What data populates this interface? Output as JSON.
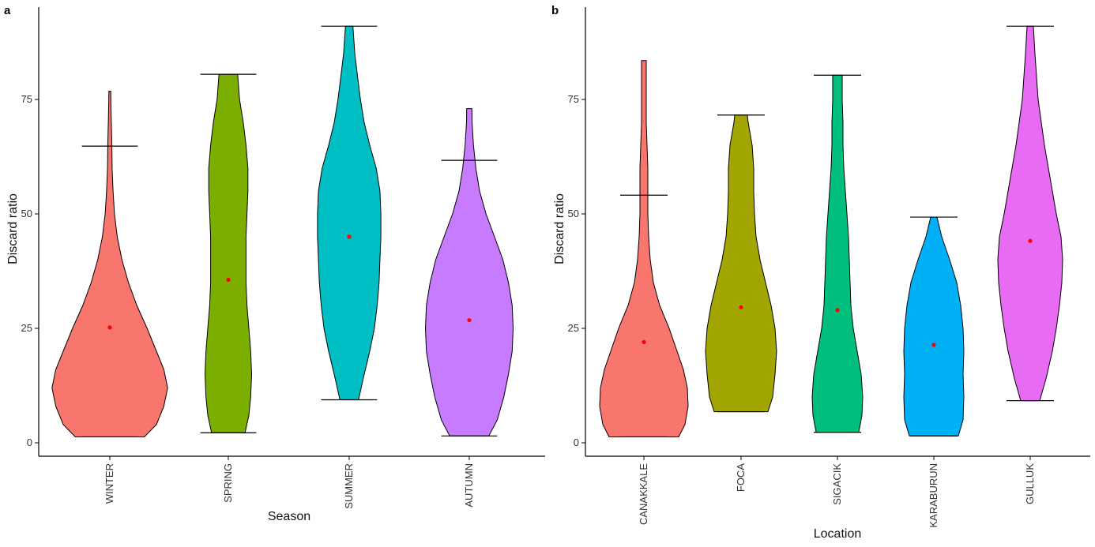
{
  "chart_data": [
    {
      "panel_label": "a",
      "type": "violin",
      "xlabel": "Season",
      "ylabel": "Discard ratio",
      "ylim": [
        0,
        93
      ],
      "yticks": [
        0,
        25,
        50,
        75
      ],
      "categories": [
        "WINTER",
        "SPRING",
        "SUMMER",
        "AUTUMN"
      ],
      "colors": [
        "#F8766D",
        "#7CAE00",
        "#00BFC4",
        "#C77CFF"
      ],
      "groups": [
        {
          "name": "WINTER",
          "min": 1.3,
          "max": 76.8,
          "upper_whisker": 64.8,
          "mean": 25.2,
          "density": [
            [
              1.3,
              0.37
            ],
            [
              4,
              0.5
            ],
            [
              8,
              0.58
            ],
            [
              12,
              0.62
            ],
            [
              16,
              0.58
            ],
            [
              20,
              0.5
            ],
            [
              25,
              0.4
            ],
            [
              30,
              0.29
            ],
            [
              35,
              0.2
            ],
            [
              40,
              0.13
            ],
            [
              45,
              0.08
            ],
            [
              50,
              0.05
            ],
            [
              55,
              0.035
            ],
            [
              60,
              0.025
            ],
            [
              65,
              0.022
            ],
            [
              70,
              0.016
            ],
            [
              74,
              0.012
            ],
            [
              76.8,
              0.01
            ]
          ]
        },
        {
          "name": "SPRING",
          "min": 2.2,
          "max": 80.5,
          "upper_whisker": 80.5,
          "mean": 35.6,
          "density": [
            [
              2.2,
              0.18
            ],
            [
              6,
              0.22
            ],
            [
              10,
              0.24
            ],
            [
              15,
              0.25
            ],
            [
              20,
              0.24
            ],
            [
              25,
              0.22
            ],
            [
              30,
              0.2
            ],
            [
              35,
              0.19
            ],
            [
              40,
              0.19
            ],
            [
              45,
              0.19
            ],
            [
              50,
              0.2
            ],
            [
              55,
              0.21
            ],
            [
              60,
              0.21
            ],
            [
              65,
              0.19
            ],
            [
              70,
              0.16
            ],
            [
              75,
              0.12
            ],
            [
              80.5,
              0.1
            ]
          ]
        },
        {
          "name": "SUMMER",
          "min": 9.4,
          "max": 91.0,
          "upper_whisker": 91.0,
          "mean": 45.0,
          "density": [
            [
              9.4,
              0.1
            ],
            [
              14,
              0.15
            ],
            [
              20,
              0.22
            ],
            [
              25,
              0.27
            ],
            [
              30,
              0.3
            ],
            [
              35,
              0.32
            ],
            [
              40,
              0.33
            ],
            [
              45,
              0.34
            ],
            [
              50,
              0.34
            ],
            [
              55,
              0.33
            ],
            [
              60,
              0.29
            ],
            [
              65,
              0.22
            ],
            [
              70,
              0.16
            ],
            [
              75,
              0.12
            ],
            [
              80,
              0.09
            ],
            [
              85,
              0.06
            ],
            [
              91,
              0.04
            ]
          ]
        },
        {
          "name": "AUTUMN",
          "min": 1.5,
          "max": 73.0,
          "upper_whisker": 61.7,
          "mean": 26.8,
          "density": [
            [
              1.5,
              0.21
            ],
            [
              5,
              0.3
            ],
            [
              10,
              0.37
            ],
            [
              15,
              0.42
            ],
            [
              20,
              0.46
            ],
            [
              25,
              0.47
            ],
            [
              30,
              0.46
            ],
            [
              35,
              0.42
            ],
            [
              40,
              0.36
            ],
            [
              45,
              0.27
            ],
            [
              50,
              0.18
            ],
            [
              55,
              0.11
            ],
            [
              60,
              0.07
            ],
            [
              65,
              0.045
            ],
            [
              70,
              0.03
            ],
            [
              73,
              0.028
            ]
          ]
        }
      ]
    },
    {
      "panel_label": "b",
      "type": "violin",
      "xlabel": "Location",
      "ylabel": "Discard ratio",
      "ylim": [
        0,
        93
      ],
      "yticks": [
        0,
        25,
        50,
        75
      ],
      "categories": [
        "CANAKKALE",
        "FOCA",
        "SIGACIK",
        "KARABURUN",
        "GULLUK"
      ],
      "colors": [
        "#F8766D",
        "#A3A500",
        "#00BF7D",
        "#00B0F6",
        "#E76BF3"
      ],
      "groups": [
        {
          "name": "CANAKKALE",
          "min": 1.3,
          "max": 83.5,
          "upper_whisker": 54.1,
          "mean": 22.0,
          "density": [
            [
              1.3,
              0.44
            ],
            [
              4,
              0.52
            ],
            [
              8,
              0.56
            ],
            [
              12,
              0.55
            ],
            [
              16,
              0.5
            ],
            [
              20,
              0.42
            ],
            [
              25,
              0.32
            ],
            [
              30,
              0.2
            ],
            [
              35,
              0.12
            ],
            [
              40,
              0.08
            ],
            [
              45,
              0.06
            ],
            [
              50,
              0.05
            ],
            [
              55,
              0.05
            ],
            [
              60,
              0.05
            ],
            [
              65,
              0.04
            ],
            [
              70,
              0.03
            ],
            [
              75,
              0.03
            ],
            [
              83.5,
              0.03
            ]
          ]
        },
        {
          "name": "FOCA",
          "min": 6.8,
          "max": 71.6,
          "upper_whisker": 71.6,
          "mean": 29.6,
          "density": [
            [
              6.8,
              0.34
            ],
            [
              10,
              0.4
            ],
            [
              15,
              0.43
            ],
            [
              20,
              0.45
            ],
            [
              25,
              0.43
            ],
            [
              30,
              0.38
            ],
            [
              35,
              0.31
            ],
            [
              40,
              0.24
            ],
            [
              45,
              0.19
            ],
            [
              50,
              0.17
            ],
            [
              55,
              0.16
            ],
            [
              60,
              0.16
            ],
            [
              65,
              0.14
            ],
            [
              70,
              0.09
            ],
            [
              71.6,
              0.08
            ]
          ]
        },
        {
          "name": "SIGACIK",
          "min": 2.3,
          "max": 80.3,
          "upper_whisker": 80.3,
          "mean": 29.0,
          "density": [
            [
              2.3,
              0.27
            ],
            [
              6,
              0.31
            ],
            [
              10,
              0.32
            ],
            [
              15,
              0.3
            ],
            [
              20,
              0.25
            ],
            [
              25,
              0.2
            ],
            [
              30,
              0.17
            ],
            [
              35,
              0.16
            ],
            [
              40,
              0.15
            ],
            [
              45,
              0.14
            ],
            [
              50,
              0.12
            ],
            [
              55,
              0.1
            ],
            [
              60,
              0.08
            ],
            [
              65,
              0.07
            ],
            [
              70,
              0.07
            ],
            [
              75,
              0.06
            ],
            [
              80.3,
              0.06
            ]
          ]
        },
        {
          "name": "KARABURUN",
          "min": 1.5,
          "max": 49.3,
          "upper_whisker": 49.3,
          "mean": 21.4,
          "density": [
            [
              1.5,
              0.31
            ],
            [
              5,
              0.37
            ],
            [
              10,
              0.38
            ],
            [
              15,
              0.37
            ],
            [
              20,
              0.38
            ],
            [
              25,
              0.37
            ],
            [
              30,
              0.34
            ],
            [
              35,
              0.29
            ],
            [
              40,
              0.2
            ],
            [
              45,
              0.1
            ],
            [
              49.3,
              0.04
            ]
          ]
        },
        {
          "name": "GULLUK",
          "min": 9.2,
          "max": 91.0,
          "upper_whisker": 91.0,
          "mean": 44.1,
          "density": [
            [
              9.2,
              0.12
            ],
            [
              14,
              0.2
            ],
            [
              20,
              0.28
            ],
            [
              25,
              0.33
            ],
            [
              30,
              0.37
            ],
            [
              35,
              0.4
            ],
            [
              40,
              0.41
            ],
            [
              45,
              0.39
            ],
            [
              50,
              0.33
            ],
            [
              55,
              0.28
            ],
            [
              60,
              0.23
            ],
            [
              65,
              0.18
            ],
            [
              70,
              0.14
            ],
            [
              75,
              0.1
            ],
            [
              80,
              0.08
            ],
            [
              85,
              0.06
            ],
            [
              91,
              0.04
            ]
          ]
        }
      ]
    }
  ]
}
